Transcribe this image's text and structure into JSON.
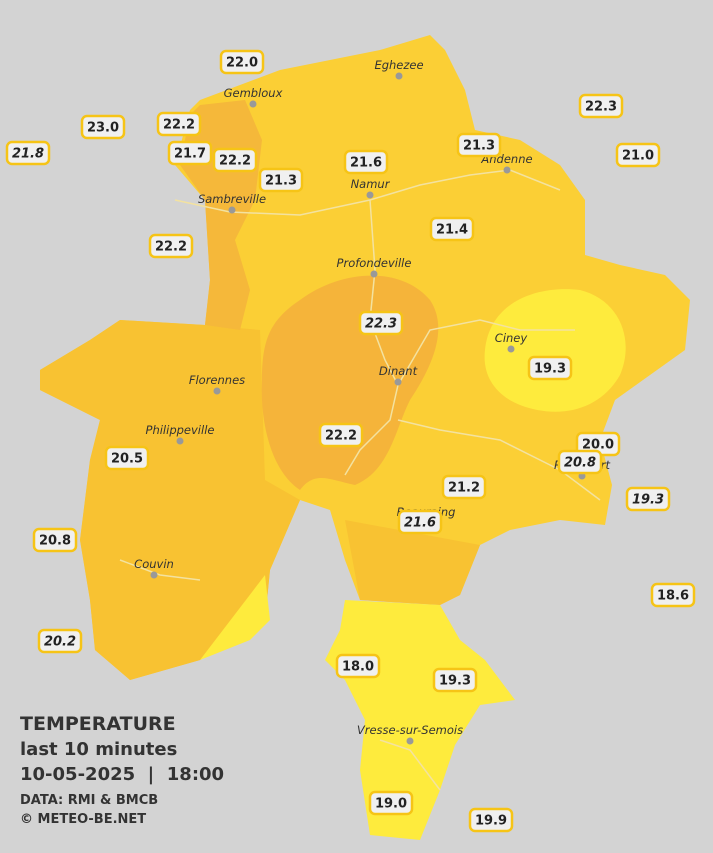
{
  "legend": {
    "title": "TEMPERATURE",
    "subtitle": "last 10 minutes",
    "datetime": "10-05-2025  |  18:00",
    "source": "DATA: RMI & BMCB",
    "copyright": "© METEO-BE.NET"
  },
  "towns": [
    {
      "name": "Eghezee"
    },
    {
      "name": "Gembloux"
    },
    {
      "name": "Andenne"
    },
    {
      "name": "Namur"
    },
    {
      "name": "Sambreville"
    },
    {
      "name": "Profondeville"
    },
    {
      "name": "Ciney"
    },
    {
      "name": "Dinant"
    },
    {
      "name": "Florennes"
    },
    {
      "name": "Philippeville"
    },
    {
      "name": "Rochefort"
    },
    {
      "name": "Beauraing"
    },
    {
      "name": "Couvin"
    },
    {
      "name": "Vresse-sur-Semois"
    }
  ],
  "stations": [
    {
      "value": "22.0",
      "italic": false
    },
    {
      "value": "23.0",
      "italic": false
    },
    {
      "value": "22.2",
      "italic": false
    },
    {
      "value": "21.8",
      "italic": true
    },
    {
      "value": "21.7",
      "italic": false
    },
    {
      "value": "22.2",
      "italic": false
    },
    {
      "value": "21.3",
      "italic": false
    },
    {
      "value": "21.6",
      "italic": false
    },
    {
      "value": "21.3",
      "italic": false
    },
    {
      "value": "22.3",
      "italic": false
    },
    {
      "value": "21.0",
      "italic": false
    },
    {
      "value": "22.2",
      "italic": false
    },
    {
      "value": "21.4",
      "italic": false
    },
    {
      "value": "22.3",
      "italic": true
    },
    {
      "value": "19.3",
      "italic": false
    },
    {
      "value": "20.5",
      "italic": false
    },
    {
      "value": "22.2",
      "italic": false
    },
    {
      "value": "20.0",
      "italic": false
    },
    {
      "value": "20.8",
      "italic": true
    },
    {
      "value": "21.2",
      "italic": false
    },
    {
      "value": "21.6",
      "italic": true
    },
    {
      "value": "19.3",
      "italic": true
    },
    {
      "value": "20.8",
      "italic": false
    },
    {
      "value": "18.6",
      "italic": false
    },
    {
      "value": "20.2",
      "italic": true
    },
    {
      "value": "18.0",
      "italic": false
    },
    {
      "value": "19.3",
      "italic": false
    },
    {
      "value": "19.0",
      "italic": false
    },
    {
      "value": "19.9",
      "italic": false
    }
  ]
}
